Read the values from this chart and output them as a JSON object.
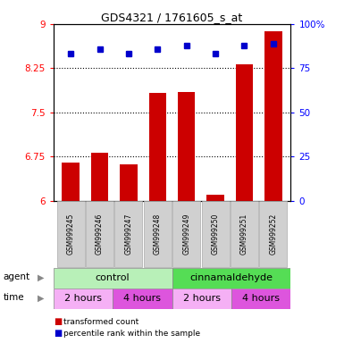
{
  "title": "GDS4321 / 1761605_s_at",
  "samples": [
    "GSM999245",
    "GSM999246",
    "GSM999247",
    "GSM999248",
    "GSM999249",
    "GSM999250",
    "GSM999251",
    "GSM999252"
  ],
  "red_values": [
    6.65,
    6.82,
    6.62,
    7.83,
    7.85,
    6.1,
    8.32,
    8.88
  ],
  "blue_values": [
    83,
    86,
    83,
    86,
    88,
    83,
    88,
    89
  ],
  "ylim_left": [
    6.0,
    9.0
  ],
  "ylim_right": [
    0,
    100
  ],
  "yticks_left": [
    6,
    6.75,
    7.5,
    8.25,
    9
  ],
  "yticks_right": [
    0,
    25,
    50,
    75,
    100
  ],
  "ytick_labels_left": [
    "6",
    "6.75",
    "7.5",
    "8.25",
    "9"
  ],
  "ytick_labels_right": [
    "0",
    "25",
    "50",
    "75",
    "100%"
  ],
  "time_labels": [
    "2 hours",
    "4 hours",
    "2 hours",
    "4 hours"
  ],
  "time_colors_light": "#f5b0f5",
  "time_colors_dark": "#dd55dd",
  "agent_color_light": "#b8f0b8",
  "agent_color_dark": "#55dd55",
  "bar_color": "#cc0000",
  "dot_color": "#0000cc",
  "plot_bg": "#ffffff",
  "legend_red": "transformed count",
  "legend_blue": "percentile rank within the sample",
  "sample_bg": "#d0d0d0"
}
